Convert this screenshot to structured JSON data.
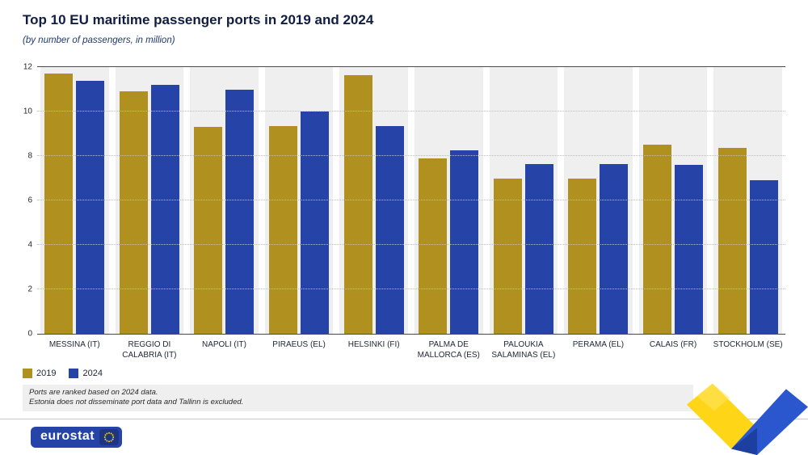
{
  "header": {
    "title": "Top 10 EU maritime passenger ports in 2019 and 2024",
    "subtitle": "(by number of passengers, in million)"
  },
  "chart_data": {
    "type": "bar",
    "categories": [
      "MESSINA (IT)",
      "REGGIO DI CALABRIA (IT)",
      "NAPOLI (IT)",
      "PIRAEUS (EL)",
      "HELSINKI (FI)",
      "PALMA DE MALLORCA (ES)",
      "PALOUKIA SALAMINAS (EL)",
      "PERAMA (EL)",
      "CALAIS (FR)",
      "STOCKHOLM (SE)"
    ],
    "series": [
      {
        "name": "2019",
        "color": "#b09120",
        "values": [
          11.7,
          10.9,
          9.3,
          9.35,
          11.65,
          7.9,
          7.0,
          7.0,
          8.5,
          8.35
        ]
      },
      {
        "name": "2024",
        "color": "#2644a7",
        "values": [
          11.4,
          11.2,
          11.0,
          10.0,
          9.35,
          8.25,
          7.65,
          7.65,
          7.6,
          6.9
        ]
      }
    ],
    "title": "Top 10 EU maritime passenger ports in 2019 and 2024",
    "xlabel": "",
    "ylabel": "",
    "ylim": [
      0,
      12
    ],
    "yticks": [
      0,
      2,
      4,
      6,
      8,
      10,
      12
    ],
    "grid": "dotted horizontal",
    "legend_position": "bottom-left"
  },
  "legend": [
    {
      "label": "2019",
      "color": "#b09120"
    },
    {
      "label": "2024",
      "color": "#2644a7"
    }
  ],
  "footnotes": [
    "Ports are ranked based on 2024 data.",
    "Estonia does not disseminate port data and Tallinn is excluded."
  ],
  "footer": {
    "logo_text": "eurostat"
  },
  "colors": {
    "gold": "#b09120",
    "blue": "#2644a7",
    "band_gray": "#efefef",
    "ribbon_yellow": "#ffd617",
    "ribbon_blue": "#2b57ce",
    "logo_blue": "#2644a7"
  }
}
